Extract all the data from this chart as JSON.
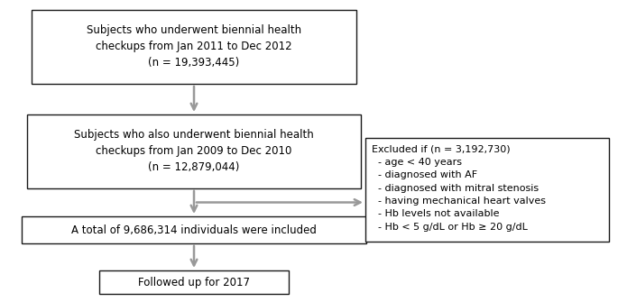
{
  "box1_text": "Subjects who underwent biennial health\ncheckups from Jan 2011 to Dec 2012\n(n = 19,393,445)",
  "box2_text": "Subjects who also underwent biennial health\ncheckups from Jan 2009 to Dec 2010\n(n = 12,879,044)",
  "box3_text": "A total of 9,686,314 individuals were included",
  "box4_text": "Followed up for 2017",
  "exclude_text": "Excluded if (n = 3,192,730)\n  - age < 40 years\n  - diagnosed with AF\n  - diagnosed with mitral stenosis\n  - having mechanical heart valves\n  - Hb levels not available\n  - Hb < 5 g/dL or Hb ≥ 20 g/dL",
  "box_facecolor": "#ffffff",
  "box_edgecolor": "#1a1a1a",
  "arrow_color": "#999999",
  "text_color": "#000000",
  "background_color": "#ffffff",
  "fontsize": 8.5
}
